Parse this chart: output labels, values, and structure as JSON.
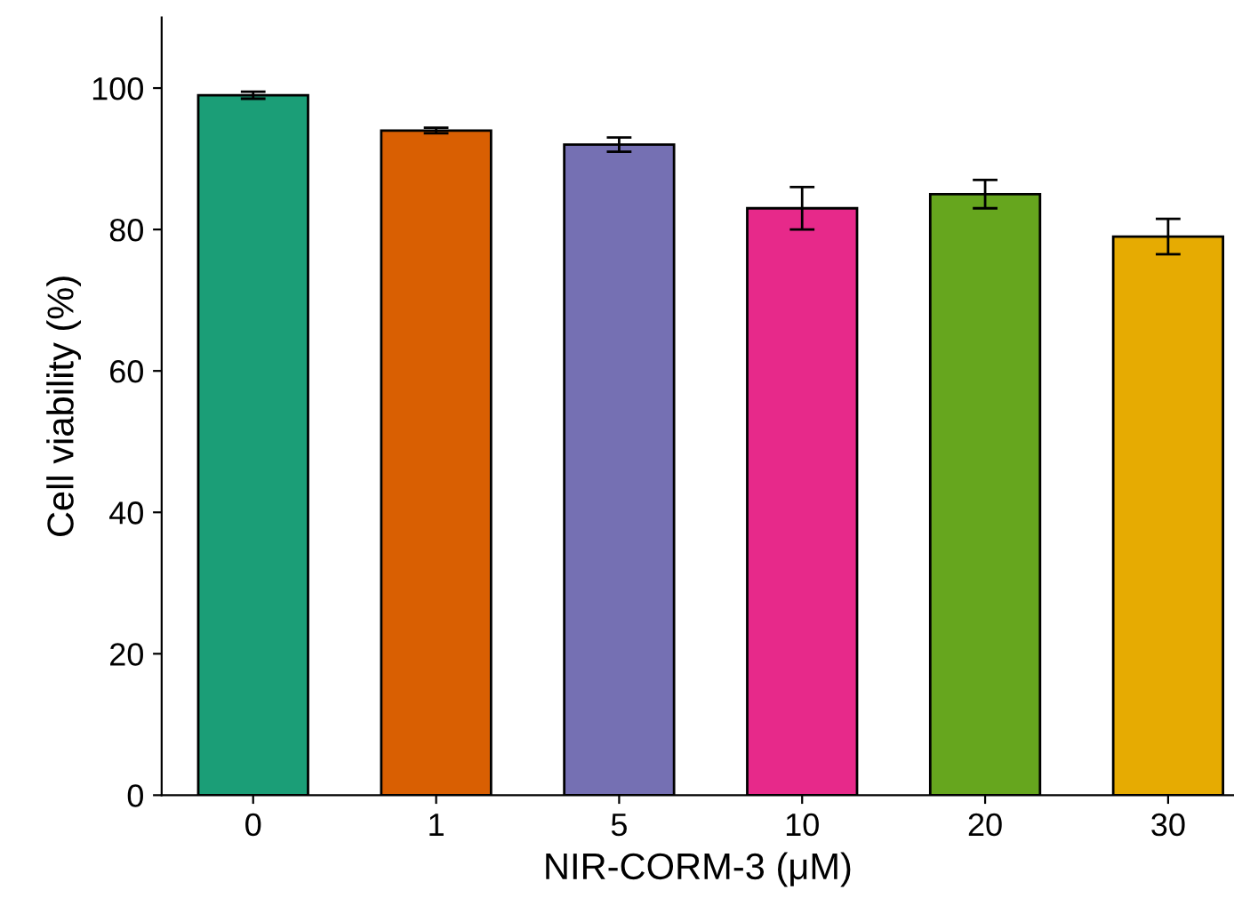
{
  "chart_data": {
    "type": "bar",
    "xlabel": "NIR-CORM-3 (μM)",
    "ylabel": "Cell viability (%)",
    "categories": [
      "0",
      "1",
      "5",
      "10",
      "20",
      "30"
    ],
    "values": [
      99,
      94,
      92,
      83,
      85,
      79
    ],
    "errors": [
      0.5,
      0.4,
      1,
      3,
      2,
      2.5
    ],
    "colors": [
      "#1b9e77",
      "#d95f02",
      "#7570b3",
      "#e7298a",
      "#66a61e",
      "#e6ab02"
    ],
    "ylim": [
      0,
      110
    ],
    "yticks": [
      0,
      20,
      40,
      60,
      80,
      100
    ],
    "grid": false,
    "legend": false
  }
}
